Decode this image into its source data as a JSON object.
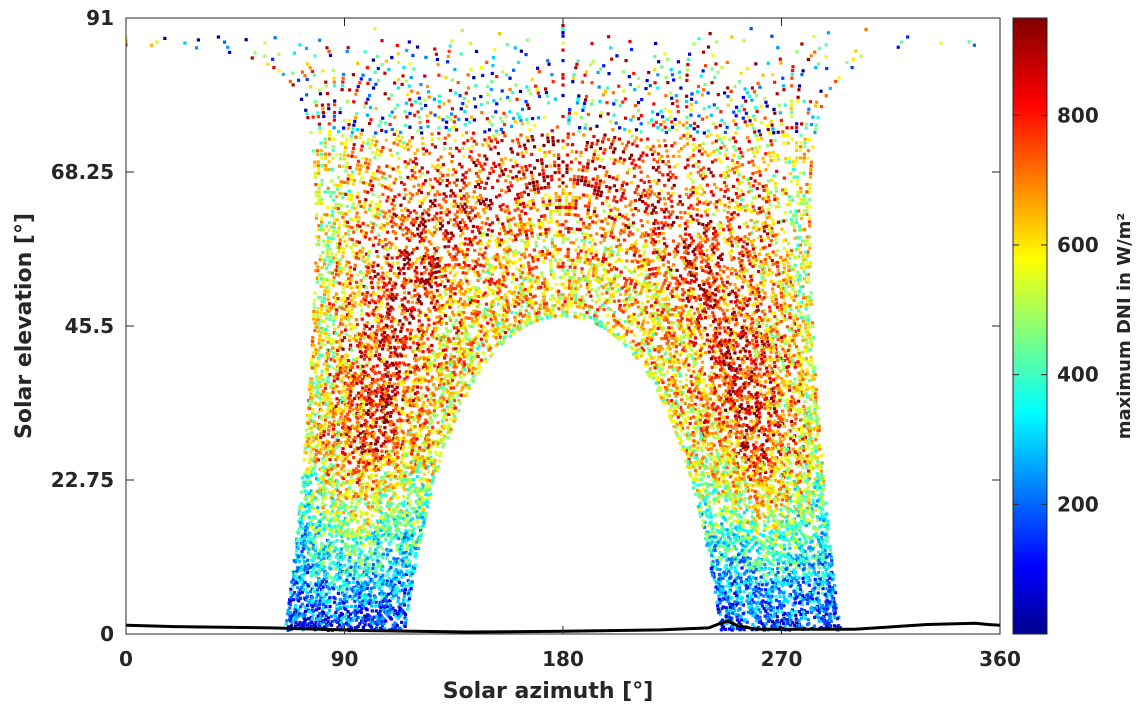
{
  "chart_data": {
    "type": "scatter",
    "title": "",
    "xlabel": "Solar azimuth [°]",
    "ylabel": "Solar elevation [°]",
    "xlim": [
      0,
      360
    ],
    "ylim": [
      0,
      91
    ],
    "xticks": [
      0,
      90,
      180,
      270,
      360
    ],
    "xtick_labels": [
      "0",
      "90",
      "180",
      "270",
      "360"
    ],
    "yticks": [
      0,
      22.75,
      45.5,
      68.25,
      91
    ],
    "ytick_labels": [
      "0",
      "22.75",
      "45.5",
      "68.25",
      "91"
    ],
    "grid": false,
    "colorbar": {
      "label": "maximum DNI in W/m²",
      "colormap": "jet",
      "range": [
        0,
        950
      ],
      "ticks": [
        200,
        400,
        600,
        800
      ],
      "tick_labels": [
        "200",
        "400",
        "600",
        "800"
      ]
    },
    "sun_paths": {
      "description_of_color": "colour = maximum DNI",
      "summer_boundary": {
        "azimuth": [
          0,
          30,
          60,
          80,
          90,
          105,
          120,
          150,
          180,
          210,
          240,
          255,
          270,
          280,
          300,
          330,
          360
        ],
        "elevation": [
          76,
          76,
          76,
          75,
          73,
          68,
          60,
          48,
          44,
          48,
          60,
          68,
          73,
          75,
          76,
          76,
          76
        ]
      },
      "winter_boundary": {
        "azimuth": [
          117,
          125,
          140,
          160,
          180,
          200,
          220,
          235,
          243
        ],
        "elevation": [
          2,
          30,
          45,
          54,
          57,
          54,
          45,
          30,
          2
        ]
      },
      "sunrise_azimuth_range": [
        68,
        117
      ],
      "sunset_azimuth_range": [
        243,
        292
      ],
      "max_elevation": 88
    },
    "horizon_line": {
      "color": "#000000",
      "azimuth": [
        0,
        20,
        60,
        100,
        140,
        180,
        220,
        240,
        245,
        248,
        252,
        260,
        300,
        330,
        350,
        355,
        360
      ],
      "elevation": [
        1.3,
        1.1,
        0.9,
        0.5,
        0.3,
        0.4,
        0.6,
        0.9,
        1.6,
        1.9,
        1.2,
        0.7,
        0.7,
        1.4,
        1.6,
        1.4,
        1.3
      ]
    },
    "colors": {
      "axis": "#262626",
      "background": "#ffffff"
    }
  }
}
